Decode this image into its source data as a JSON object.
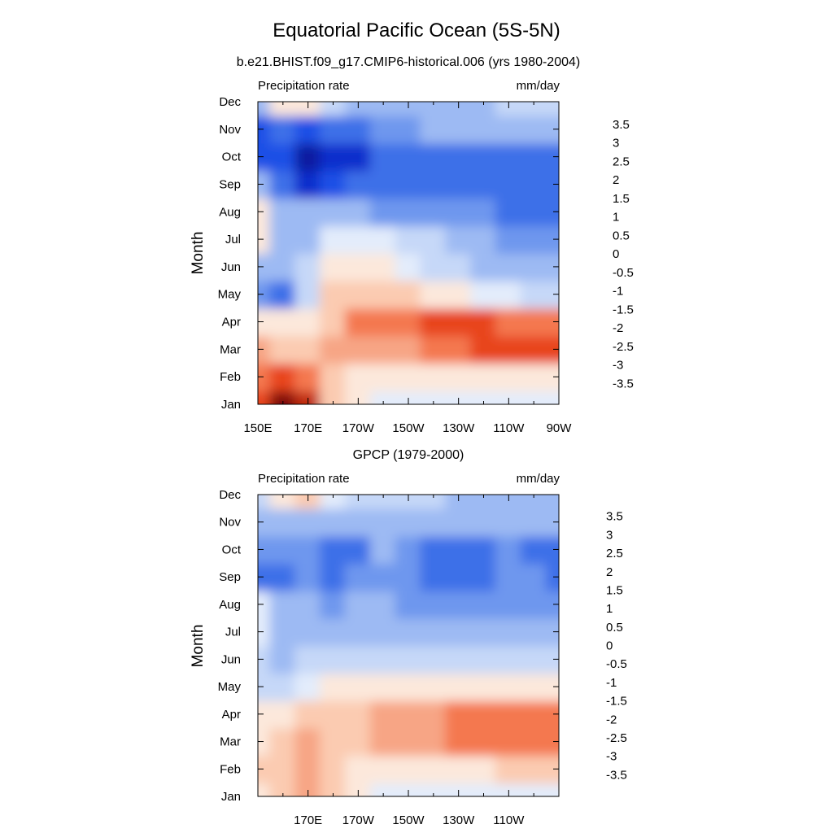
{
  "figure": {
    "title": "Equatorial Pacific Ocean (5S-5N)",
    "months": [
      "Jan",
      "Feb",
      "Mar",
      "Apr",
      "May",
      "Jun",
      "Jul",
      "Aug",
      "Sep",
      "Oct",
      "Nov",
      "Dec"
    ],
    "colorbar": {
      "levels": [
        -3.5,
        -3,
        -2.5,
        -2,
        -1.5,
        -1,
        -0.5,
        0,
        0.5,
        1,
        1.5,
        2,
        2.5,
        3,
        3.5
      ],
      "labels": [
        "-3.5",
        "-3",
        "-2.5",
        "-2",
        "-1.5",
        "-1",
        "-0.5",
        "0",
        "0.5",
        "1",
        "1.5",
        "2",
        "2.5",
        "3",
        "3.5"
      ],
      "colors": [
        "#00007f",
        "#0a1fa0",
        "#0f2fcc",
        "#1f4fe6",
        "#3d6fe8",
        "#6e97ee",
        "#9dbaf3",
        "#c6d8f8",
        "#e3ecfb",
        "#fce8db",
        "#fbcbb1",
        "#f7a585",
        "#f4784f",
        "#e8451a",
        "#c02a0c",
        "#7f0e07"
      ]
    }
  },
  "chart_data": [
    {
      "type": "heatmap",
      "subtitle": "b.e21.BHIST.f09_g17.CMIP6-historical.006 (yrs 1980-2004)",
      "left_label": "Precipitation rate",
      "right_label": "mm/day",
      "ylabel": "Month",
      "xlabel": "",
      "x_tick_labels": [
        "150E",
        "170E",
        "170W",
        "150W",
        "130W",
        "110W",
        "90W"
      ],
      "x": [
        150,
        160,
        170,
        180,
        190,
        200,
        210,
        220,
        230,
        240,
        250,
        260,
        270
      ],
      "y": [
        "Jan",
        "Feb",
        "Mar",
        "Apr",
        "May",
        "Jun",
        "Jul",
        "Aug",
        "Sep",
        "Oct",
        "Nov",
        "Dec"
      ],
      "z": [
        [
          2.8,
          3.5,
          3.2,
          1.2,
          0.6,
          0.4,
          0.1,
          0.2,
          0.4,
          0.3,
          0.3,
          0.3,
          0.3
        ],
        [
          2.2,
          2.6,
          2.2,
          1.4,
          0.8,
          0.6,
          0.5,
          0.5,
          0.5,
          0.5,
          0.6,
          0.6,
          0.6
        ],
        [
          1.6,
          1.4,
          1.0,
          1.6,
          1.6,
          1.6,
          1.8,
          2.0,
          2.4,
          2.6,
          2.8,
          2.7,
          2.6
        ],
        [
          0.8,
          0.6,
          0.8,
          1.2,
          2.0,
          2.2,
          2.4,
          2.6,
          2.8,
          2.6,
          2.4,
          2.4,
          2.4
        ],
        [
          -1.4,
          -1.6,
          -0.4,
          1.0,
          1.4,
          1.2,
          1.0,
          0.8,
          0.6,
          0.2,
          0.0,
          -0.2,
          -0.4
        ],
        [
          -0.8,
          -0.6,
          -0.4,
          0.6,
          0.8,
          0.6,
          0.2,
          -0.2,
          -0.4,
          -0.6,
          -0.8,
          -1.0,
          -1.0
        ],
        [
          0.8,
          -0.6,
          -0.6,
          0.2,
          0.4,
          0.2,
          -0.2,
          -0.5,
          -0.8,
          -1.0,
          -1.2,
          -1.2,
          -1.2
        ],
        [
          0.6,
          -0.8,
          -1.0,
          -1.0,
          -1.0,
          -1.1,
          -1.2,
          -1.4,
          -1.5,
          -1.5,
          -1.6,
          -1.6,
          -1.8
        ],
        [
          -1.0,
          -2.0,
          -2.6,
          -2.4,
          -2.0,
          -1.6,
          -1.6,
          -1.6,
          -1.6,
          -1.6,
          -1.6,
          -1.6,
          -2.0
        ],
        [
          -2.2,
          -2.4,
          -3.2,
          -3.0,
          -2.6,
          -1.8,
          -1.6,
          -1.6,
          -1.6,
          -1.6,
          -1.6,
          -1.6,
          -2.0
        ],
        [
          -2.4,
          -1.8,
          -2.2,
          -2.0,
          -1.6,
          -1.2,
          -1.1,
          -1.0,
          -1.0,
          -1.0,
          -1.0,
          -1.0,
          -1.0
        ],
        [
          -0.8,
          0.8,
          0.6,
          -0.4,
          -0.6,
          -0.6,
          -0.6,
          -0.6,
          -0.6,
          -0.6,
          -0.5,
          -0.5,
          -0.5
        ]
      ],
      "zlim": [
        -3.5,
        3.5
      ]
    },
    {
      "type": "heatmap",
      "subtitle": "GPCP (1979-2000)",
      "left_label": "Precipitation rate",
      "right_label": "mm/day",
      "ylabel": "Month",
      "xlabel": "",
      "x_tick_labels": [
        "170E",
        "170W",
        "150W",
        "130W",
        "110W"
      ],
      "x": [
        150,
        160,
        170,
        180,
        190,
        200,
        210,
        220,
        230,
        240,
        250,
        260,
        270
      ],
      "y": [
        "Jan",
        "Feb",
        "Mar",
        "Apr",
        "May",
        "Jun",
        "Jul",
        "Aug",
        "Sep",
        "Oct",
        "Nov",
        "Dec"
      ],
      "z": [
        [
          0.8,
          1.2,
          1.6,
          1.2,
          0.6,
          0.4,
          0.3,
          0.3,
          0.3,
          0.2,
          0.3,
          0.3,
          0.4
        ],
        [
          1.0,
          1.4,
          1.8,
          1.3,
          0.8,
          0.8,
          0.8,
          0.8,
          0.8,
          0.8,
          1.0,
          1.2,
          1.2
        ],
        [
          0.8,
          1.4,
          1.6,
          1.3,
          1.4,
          1.5,
          1.6,
          1.8,
          2.0,
          2.2,
          2.2,
          2.4,
          2.2
        ],
        [
          0.6,
          0.8,
          1.0,
          1.2,
          1.4,
          1.6,
          1.8,
          1.8,
          2.2,
          2.4,
          2.2,
          2.4,
          2.2
        ],
        [
          -0.2,
          -0.2,
          0.2,
          0.6,
          0.8,
          0.6,
          0.5,
          0.5,
          0.5,
          0.6,
          0.6,
          0.6,
          0.6
        ],
        [
          -0.4,
          -0.6,
          -0.5,
          -0.2,
          -0.2,
          -0.2,
          -0.3,
          -0.2,
          -0.2,
          -0.2,
          -0.2,
          -0.2,
          -0.2
        ],
        [
          0.4,
          -0.8,
          -0.8,
          -0.6,
          -0.6,
          -0.6,
          -0.6,
          -0.6,
          -0.8,
          -0.8,
          -0.8,
          -0.8,
          -0.8
        ],
        [
          0.4,
          -0.6,
          -1.0,
          -1.1,
          -1.0,
          -1.0,
          -1.1,
          -1.1,
          -1.2,
          -1.2,
          -1.2,
          -1.2,
          -1.4
        ],
        [
          -2.0,
          -1.6,
          -1.4,
          -1.8,
          -1.4,
          -1.2,
          -1.4,
          -1.6,
          -1.6,
          -1.6,
          -1.2,
          -1.4,
          -1.6
        ],
        [
          -1.2,
          -1.2,
          -1.4,
          -2.0,
          -1.6,
          -1.0,
          -1.4,
          -1.6,
          -1.6,
          -1.6,
          -1.2,
          -1.6,
          -1.6
        ],
        [
          -0.8,
          -1.0,
          -1.0,
          -0.8,
          -0.8,
          -0.8,
          -0.8,
          -0.8,
          -0.8,
          -0.8,
          -0.8,
          -1.0,
          -1.0
        ],
        [
          -0.2,
          0.8,
          1.2,
          0.4,
          -0.2,
          -0.4,
          -0.4,
          -0.4,
          -0.6,
          -0.6,
          -0.6,
          -0.6,
          -0.6
        ]
      ],
      "zlim": [
        -3.5,
        3.5
      ]
    }
  ]
}
